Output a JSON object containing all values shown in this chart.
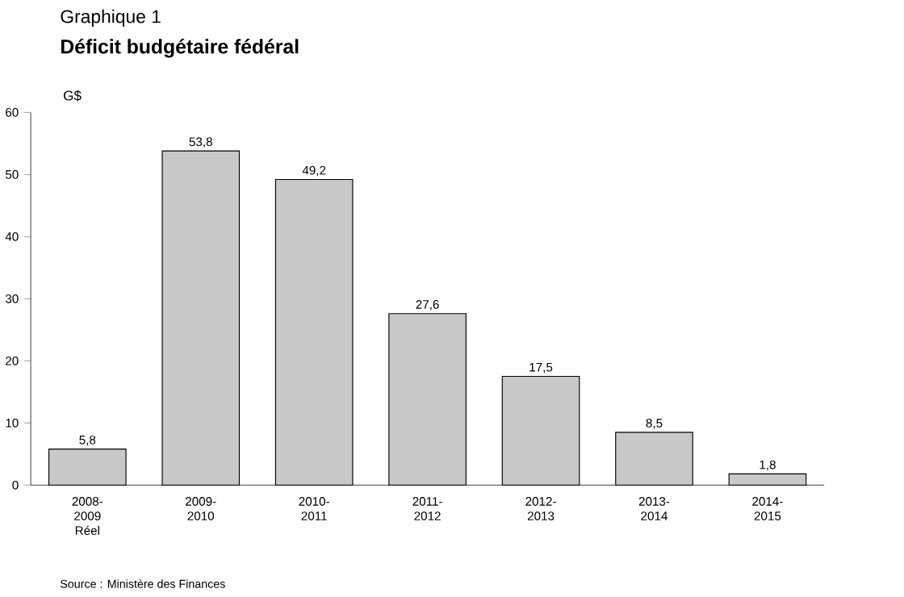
{
  "chart_data": {
    "type": "bar",
    "subtitle": "Graphique 1",
    "title": "Déficit budgétaire fédéral",
    "ylabel": "G$",
    "categories": [
      "2008-2009 Réel",
      "2009-2010",
      "2010-2011",
      "2011-2012",
      "2012-2013",
      "2013-2014",
      "2014-2015"
    ],
    "values": [
      5.8,
      53.8,
      49.2,
      27.6,
      17.5,
      8.5,
      1.8
    ],
    "value_labels": [
      "5,8",
      "53,8",
      "49,2",
      "27,6",
      "17,5",
      "8,5",
      "1,8"
    ],
    "color": "#c8c8c8",
    "ylim": [
      0,
      60
    ],
    "yticks": [
      0,
      10,
      20,
      30,
      40,
      50,
      60
    ],
    "annotations": [
      "Source : Ministère des Finances"
    ]
  }
}
